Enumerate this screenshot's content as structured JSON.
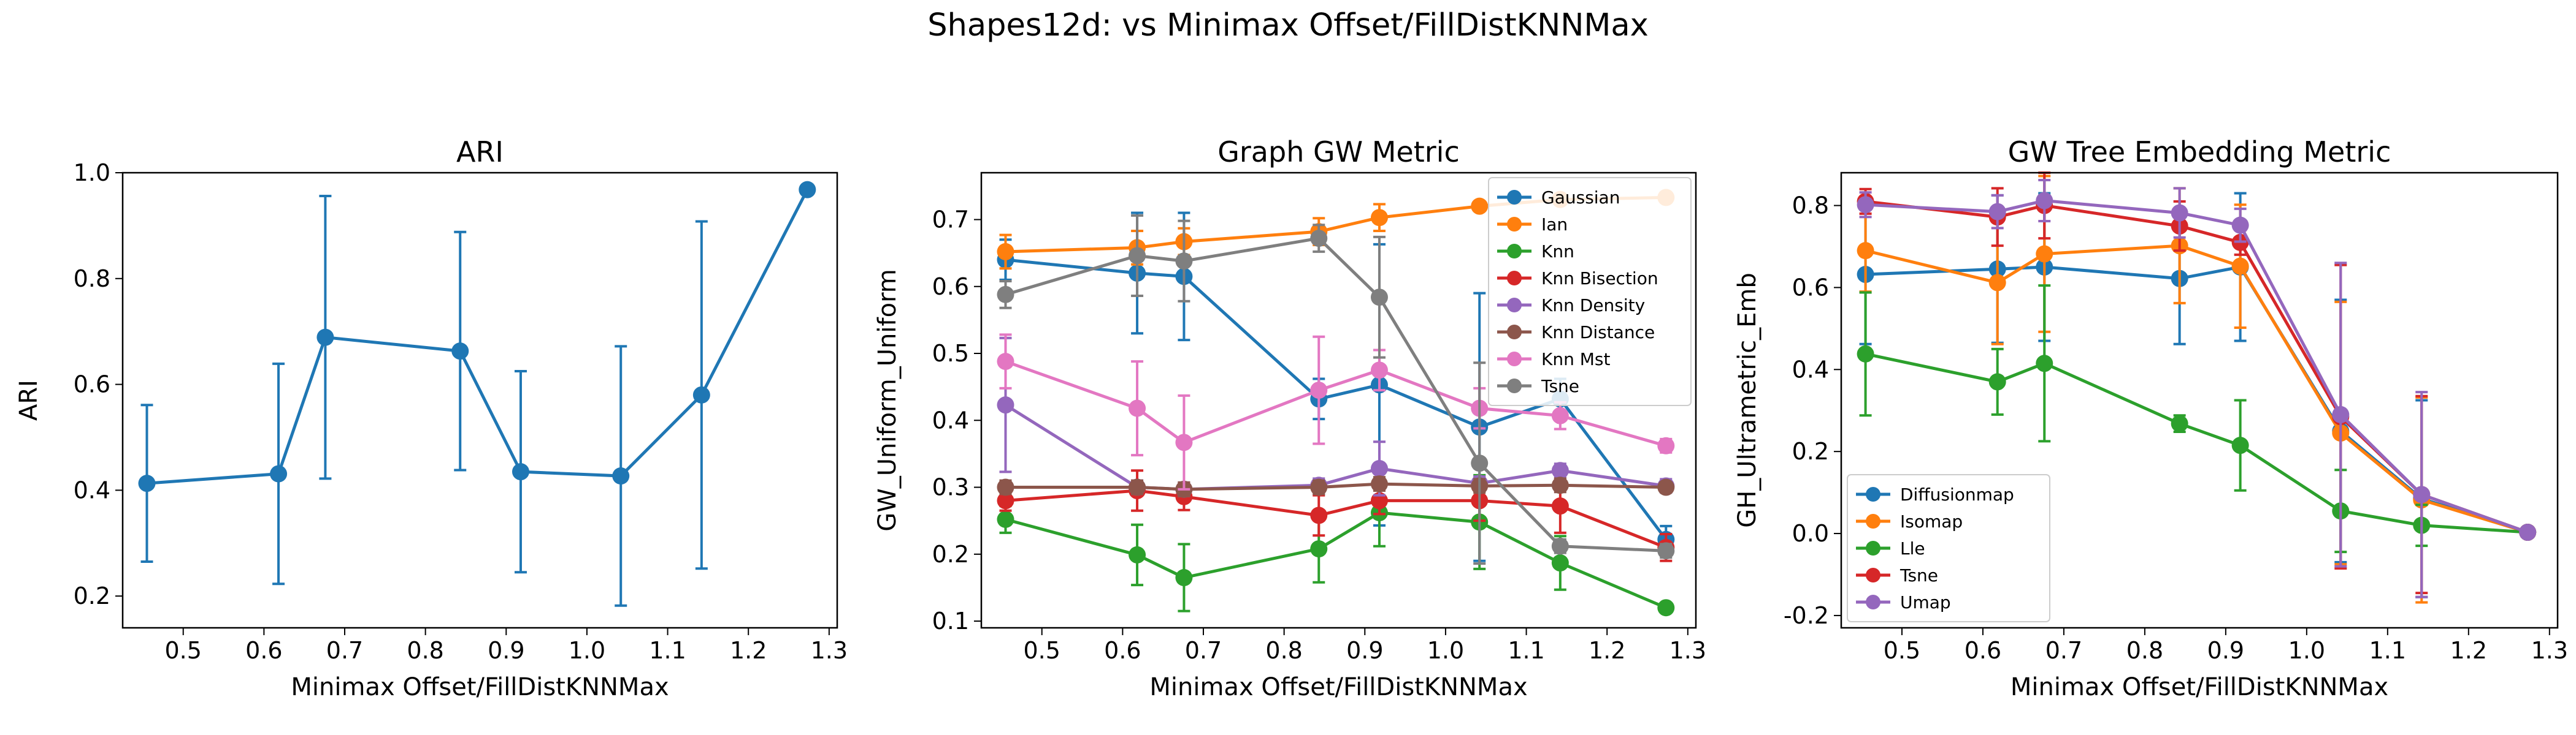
{
  "suptitle": "Shapes12d: vs Minimax Offset/FillDistKNNMax",
  "colors": {
    "blue": "#1f77b4",
    "orange": "#ff7f0e",
    "green": "#2ca02c",
    "red": "#d62728",
    "purple": "#9467bd",
    "brown": "#8c564b",
    "pink": "#e377c2",
    "gray": "#7f7f7f"
  },
  "chart_data": [
    {
      "type": "line",
      "title": "ARI",
      "xlabel": "Minimax Offset/FillDistKNNMax",
      "ylabel": "ARI",
      "xlim": [
        0.425,
        1.31
      ],
      "ylim": [
        0.14,
        1.0
      ],
      "xticks": [
        0.5,
        0.6,
        0.7,
        0.8,
        0.9,
        1.0,
        1.1,
        1.2,
        1.3
      ],
      "yticks": [
        0.2,
        0.4,
        0.6,
        0.8,
        1.0
      ],
      "legend": "none",
      "series": [
        {
          "color": "blue",
          "x": [
            0.455,
            0.618,
            0.676,
            0.843,
            0.918,
            1.042,
            1.142,
            1.273
          ],
          "y": [
            0.413,
            0.431,
            0.689,
            0.663,
            0.435,
            0.427,
            0.58,
            0.968
          ],
          "err": [
            0.148,
            0.208,
            0.267,
            0.225,
            0.19,
            0.245,
            0.328,
            0.0
          ]
        }
      ]
    },
    {
      "type": "line",
      "title": "Graph GW Metric",
      "xlabel": "Minimax Offset/FillDistKNNMax",
      "ylabel": "GW_Uniform_Uniform",
      "xlim": [
        0.425,
        1.31
      ],
      "ylim": [
        0.09,
        0.77
      ],
      "xticks": [
        0.5,
        0.6,
        0.7,
        0.8,
        0.9,
        1.0,
        1.1,
        1.2,
        1.3
      ],
      "yticks": [
        0.1,
        0.2,
        0.3,
        0.4,
        0.5,
        0.6,
        0.7
      ],
      "legend": "top-right",
      "x": [
        0.455,
        0.618,
        0.676,
        0.843,
        0.918,
        1.042,
        1.142,
        1.273
      ],
      "series": [
        {
          "name": "Gaussian",
          "color": "blue",
          "y": [
            0.64,
            0.62,
            0.615,
            0.432,
            0.453,
            0.39,
            0.432,
            0.222
          ],
          "err": [
            0.03,
            0.09,
            0.095,
            0.03,
            0.21,
            0.2,
            0.03,
            0.02
          ]
        },
        {
          "name": "Ian",
          "color": "orange",
          "y": [
            0.652,
            0.658,
            0.667,
            0.682,
            0.703,
            0.72,
            0.73,
            0.733
          ],
          "err": [
            0.025,
            0.025,
            0.02,
            0.02,
            0.02,
            0.0,
            0.0,
            0.0
          ]
        },
        {
          "name": "Knn",
          "color": "green",
          "y": [
            0.252,
            0.199,
            0.165,
            0.208,
            0.262,
            0.248,
            0.187,
            0.12
          ],
          "err": [
            0.02,
            0.045,
            0.05,
            0.05,
            0.05,
            0.07,
            0.04,
            0.0
          ]
        },
        {
          "name": "Knn Bisection",
          "color": "red",
          "y": [
            0.28,
            0.295,
            0.286,
            0.258,
            0.28,
            0.28,
            0.272,
            0.21
          ],
          "err": [
            0.015,
            0.03,
            0.02,
            0.03,
            0.02,
            0.03,
            0.04,
            0.02
          ]
        },
        {
          "name": "Knn Density",
          "color": "purple",
          "y": [
            0.423,
            0.3,
            0.297,
            0.303,
            0.328,
            0.306,
            0.325,
            0.302
          ],
          "err": [
            0.1,
            0.01,
            0.01,
            0.01,
            0.04,
            0.01,
            0.01,
            0.01
          ]
        },
        {
          "name": "Knn Distance",
          "color": "brown",
          "y": [
            0.3,
            0.3,
            0.297,
            0.3,
            0.305,
            0.302,
            0.303,
            0.3
          ],
          "err": [
            0.01,
            0.01,
            0.01,
            0.01,
            0.01,
            0.01,
            0.01,
            0.005
          ]
        },
        {
          "name": "Knn Mst",
          "color": "pink",
          "y": [
            0.488,
            0.418,
            0.367,
            0.445,
            0.475,
            0.418,
            0.407,
            0.362
          ],
          "err": [
            0.04,
            0.07,
            0.07,
            0.08,
            0.03,
            0.03,
            0.02,
            0.01
          ]
        },
        {
          "name": "Tsne",
          "color": "gray",
          "y": [
            0.588,
            0.646,
            0.638,
            0.672,
            0.584,
            0.336,
            0.212,
            0.205
          ],
          "err": [
            0.02,
            0.06,
            0.06,
            0.02,
            0.09,
            0.15,
            0.01,
            0.01
          ]
        }
      ]
    },
    {
      "type": "line",
      "title": "GW Tree Embedding Metric",
      "xlabel": "Minimax Offset/FillDistKNNMax",
      "ylabel": "GH_Ultrametric_Emb",
      "xlim": [
        0.425,
        1.31
      ],
      "ylim": [
        -0.23,
        0.88
      ],
      "xticks": [
        0.5,
        0.6,
        0.7,
        0.8,
        0.9,
        1.0,
        1.1,
        1.2,
        1.3
      ],
      "yticks": [
        -0.2,
        0.0,
        0.2,
        0.4,
        0.6,
        0.8
      ],
      "legend": "bottom-left",
      "x": [
        0.455,
        0.618,
        0.676,
        0.843,
        0.918,
        1.042,
        1.142,
        1.273
      ],
      "series": [
        {
          "name": "Diffusionmap",
          "color": "blue",
          "y": [
            0.632,
            0.645,
            0.65,
            0.622,
            0.65,
            0.25,
            0.085,
            0.003
          ],
          "err": [
            0.17,
            0.18,
            0.18,
            0.16,
            0.18,
            0.32,
            0.24,
            0.0
          ]
        },
        {
          "name": "Isomap",
          "color": "orange",
          "y": [
            0.69,
            0.612,
            0.682,
            0.702,
            0.652,
            0.245,
            0.082,
            0.003
          ],
          "err": [
            0.1,
            0.15,
            0.19,
            0.14,
            0.15,
            0.32,
            0.25,
            0.0
          ]
        },
        {
          "name": "Lle",
          "color": "green",
          "y": [
            0.438,
            0.37,
            0.415,
            0.268,
            0.215,
            0.055,
            0.02,
            0.003
          ],
          "err": [
            0.15,
            0.08,
            0.19,
            0.02,
            0.11,
            0.1,
            0.05,
            0.0
          ]
        },
        {
          "name": "Tsne",
          "color": "red",
          "y": [
            0.81,
            0.772,
            0.8,
            0.75,
            0.71,
            0.285,
            0.095,
            0.003
          ],
          "err": [
            0.03,
            0.07,
            0.08,
            0.06,
            0.03,
            0.37,
            0.24,
            0.0
          ]
        },
        {
          "name": "Umap",
          "color": "purple",
          "y": [
            0.802,
            0.785,
            0.812,
            0.782,
            0.752,
            0.29,
            0.095,
            0.003
          ],
          "err": [
            0.03,
            0.04,
            0.05,
            0.06,
            0.04,
            0.37,
            0.25,
            0.0
          ]
        }
      ]
    }
  ]
}
